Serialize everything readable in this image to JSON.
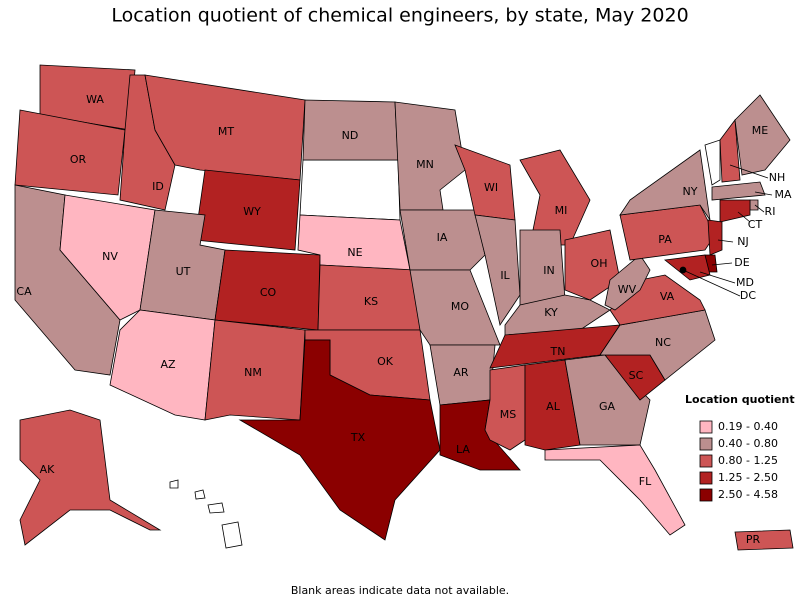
{
  "title": "Location quotient of chemical engineers, by state, May 2020",
  "states": [
    {
      "abbr": "WA",
      "color": "#cd5555"
    },
    {
      "abbr": "OR",
      "color": "#cd5555"
    },
    {
      "abbr": "CA",
      "color": "#bc8f8f"
    },
    {
      "abbr": "NV",
      "color": "#ffb6c1"
    },
    {
      "abbr": "ID",
      "color": "#cd5555"
    },
    {
      "abbr": "MT",
      "color": "#cd5555"
    },
    {
      "abbr": "WY",
      "color": "#b22222"
    },
    {
      "abbr": "UT",
      "color": "#bc8f8f"
    },
    {
      "abbr": "AZ",
      "color": "#ffb6c1"
    },
    {
      "abbr": "CO",
      "color": "#b22222"
    },
    {
      "abbr": "NM",
      "color": "#cd5555"
    },
    {
      "abbr": "ND",
      "color": "#bc8f8f"
    },
    {
      "abbr": "NE",
      "color": "#ffb6c1"
    },
    {
      "abbr": "KS",
      "color": "#cd5555"
    },
    {
      "abbr": "OK",
      "color": "#cd5555"
    },
    {
      "abbr": "TX",
      "color": "#8b0000"
    },
    {
      "abbr": "MN",
      "color": "#bc8f8f"
    },
    {
      "abbr": "IA",
      "color": "#bc8f8f"
    },
    {
      "abbr": "MO",
      "color": "#bc8f8f"
    },
    {
      "abbr": "AR",
      "color": "#bc8f8f"
    },
    {
      "abbr": "LA",
      "color": "#8b0000"
    },
    {
      "abbr": "WI",
      "color": "#cd5555"
    },
    {
      "abbr": "IL",
      "color": "#bc8f8f"
    },
    {
      "abbr": "MI",
      "color": "#cd5555"
    },
    {
      "abbr": "IN",
      "color": "#bc8f8f"
    },
    {
      "abbr": "OH",
      "color": "#cd5555"
    },
    {
      "abbr": "KY",
      "color": "#bc8f8f"
    },
    {
      "abbr": "TN",
      "color": "#b22222"
    },
    {
      "abbr": "MS",
      "color": "#cd5555"
    },
    {
      "abbr": "AL",
      "color": "#b22222"
    },
    {
      "abbr": "GA",
      "color": "#bc8f8f"
    },
    {
      "abbr": "FL",
      "color": "#ffb6c1"
    },
    {
      "abbr": "SC",
      "color": "#b22222"
    },
    {
      "abbr": "NC",
      "color": "#bc8f8f"
    },
    {
      "abbr": "VA",
      "color": "#cd5555"
    },
    {
      "abbr": "WV",
      "color": "#bc8f8f"
    },
    {
      "abbr": "PA",
      "color": "#cd5555"
    },
    {
      "abbr": "NY",
      "color": "#bc8f8f"
    },
    {
      "abbr": "NH",
      "color": "#cd5555"
    },
    {
      "abbr": "ME",
      "color": "#bc8f8f"
    },
    {
      "abbr": "MA",
      "color": "#bc8f8f"
    },
    {
      "abbr": "RI",
      "color": "#bc8f8f"
    },
    {
      "abbr": "CT",
      "color": "#b22222"
    },
    {
      "abbr": "NJ",
      "color": "#b22222"
    },
    {
      "abbr": "DE",
      "color": "#8b0000"
    },
    {
      "abbr": "MD",
      "color": "#b22222"
    },
    {
      "abbr": "DC",
      "color": "#000000"
    },
    {
      "abbr": "AK",
      "color": "#cd5555"
    },
    {
      "abbr": "PR",
      "color": "#cd5555"
    }
  ],
  "legend": {
    "title": "Location quotient",
    "items": [
      {
        "label": "0.19 - 0.40",
        "color": "#ffb6c1"
      },
      {
        "label": "0.40 - 0.80",
        "color": "#bc8f8f"
      },
      {
        "label": "0.80 - 1.25",
        "color": "#cd5555"
      },
      {
        "label": "1.25 - 2.50",
        "color": "#b22222"
      },
      {
        "label": "2.50 - 4.58",
        "color": "#8b0000"
      }
    ]
  },
  "footnote": "Blank areas indicate data not available."
}
